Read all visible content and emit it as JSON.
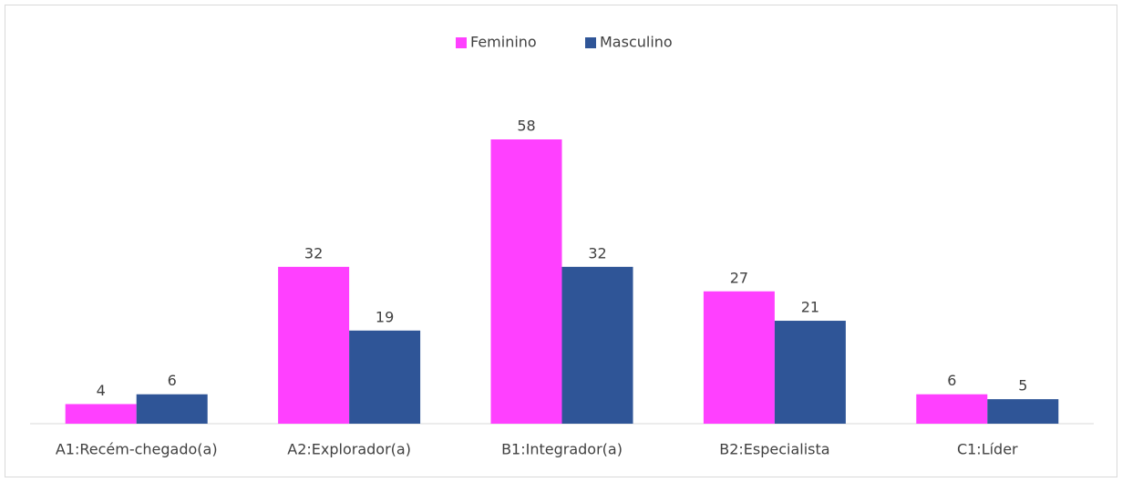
{
  "chart_data": {
    "type": "bar",
    "categories": [
      "A1:Recém-chegado(a)",
      "A2:Explorador(a)",
      "B1:Integrador(a)",
      "B2:Especialista",
      "C1:Líder"
    ],
    "series": [
      {
        "name": "Feminino",
        "color": "#ff40ff",
        "values": [
          4,
          32,
          58,
          27,
          6
        ]
      },
      {
        "name": "Masculino",
        "color": "#2f5597",
        "values": [
          6,
          19,
          32,
          21,
          5
        ]
      }
    ],
    "legend": "top",
    "grid": false
  }
}
